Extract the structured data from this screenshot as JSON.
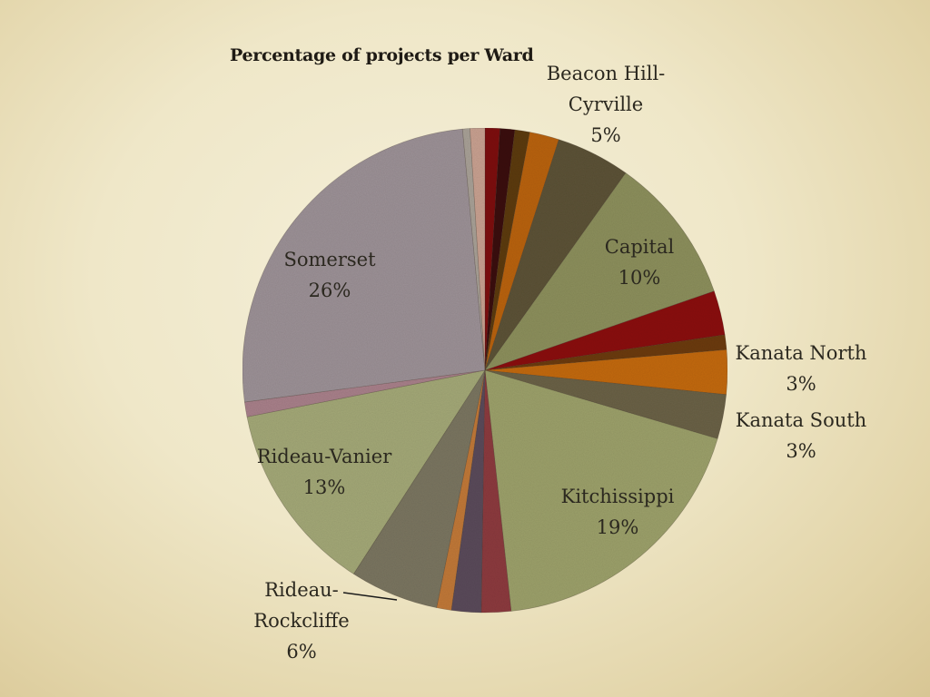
{
  "chart_data": {
    "type": "pie",
    "title": "Percentage of projects per Ward",
    "slices": [
      {
        "color": "#7d0a0e",
        "value": 1
      },
      {
        "color": "#3a0a08",
        "value": 1
      },
      {
        "color": "#5c3a10",
        "value": 1
      },
      {
        "color": "#b8620e",
        "value": 2
      },
      {
        "name": "Beacon Hill-Cyrville",
        "value": 5,
        "label_lines": [
          "Beacon Hill-",
          "Cyrville",
          "5%"
        ],
        "color": "#5c5236"
      },
      {
        "name": "Capital",
        "value": 10,
        "label_lines": [
          "Capital",
          "10%"
        ],
        "color": "#8c8f5c"
      },
      {
        "color": "#8a0c10",
        "value": 3
      },
      {
        "color": "#6b3a0c",
        "value": 1
      },
      {
        "name": "Kanata North",
        "value": 3,
        "label_lines": [
          "Kanata North",
          "3%"
        ],
        "color": "#c2690e"
      },
      {
        "name": "Kanata South",
        "value": 3,
        "label_lines": [
          "Kanata South",
          "3%"
        ],
        "color": "#6a6146"
      },
      {
        "name": "Kitchissippi",
        "value": 19,
        "label_lines": [
          "Kitchissippi",
          "19%"
        ],
        "color": "#9ca06a"
      },
      {
        "color": "#8c3a3e",
        "value": 2
      },
      {
        "color": "#5a4a5a",
        "value": 2
      },
      {
        "color": "#c07838",
        "value": 1
      },
      {
        "name": "Rideau-Rockcliffe",
        "value": 6,
        "label_lines": [
          "Rideau-",
          "Rockcliffe",
          "6%"
        ],
        "color": "#7a7560"
      },
      {
        "name": "Rideau-Vanier",
        "value": 13,
        "label_lines": [
          "Rideau-Vanier",
          "13%"
        ],
        "color": "#a3a877"
      },
      {
        "color": "#a8808a",
        "value": 1
      },
      {
        "name": "Somerset",
        "value": 26,
        "label_lines": [
          "Somerset",
          "26%"
        ],
        "color": "#9c9196"
      },
      {
        "color": "#a8a096",
        "value": 0.5
      },
      {
        "color": "#c8a090",
        "value": 1
      }
    ]
  }
}
